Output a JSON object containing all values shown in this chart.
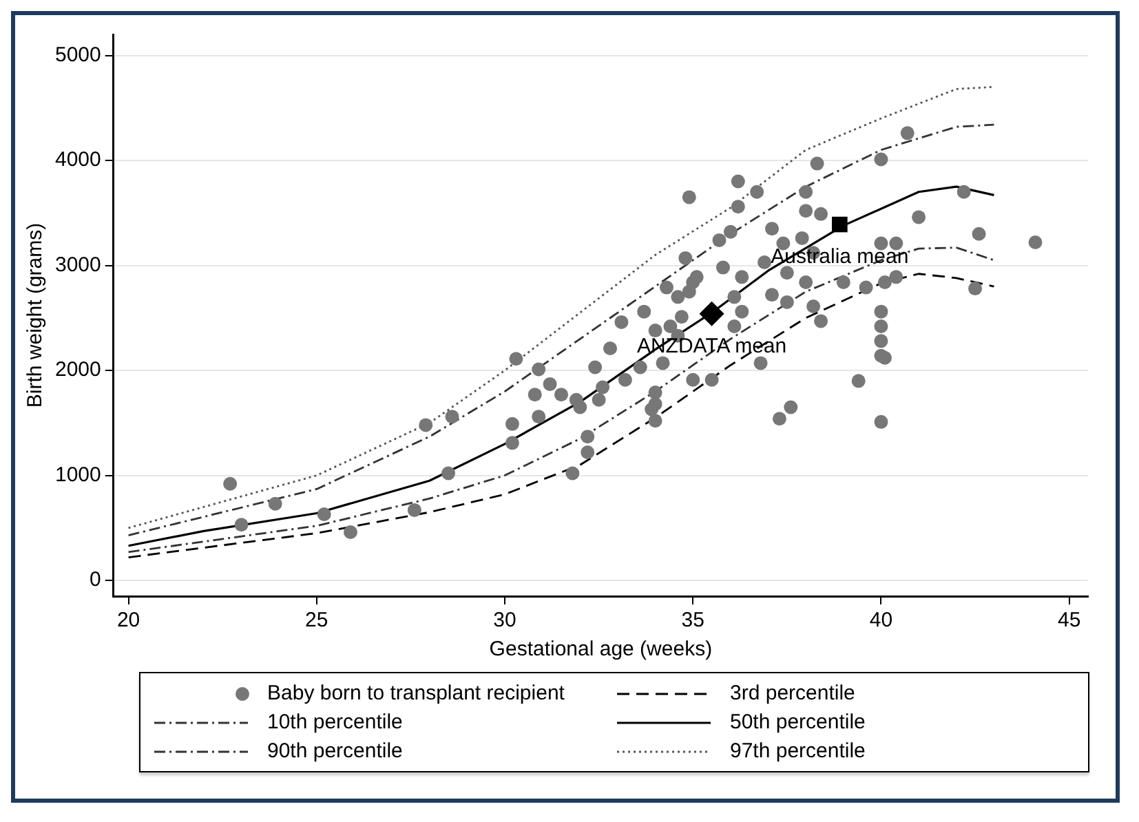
{
  "chart_data": {
    "type": "scatter",
    "xlabel": "Gestational age (weeks)",
    "ylabel": "Birth weight (grams)",
    "xlim": [
      19.6,
      45.5
    ],
    "xticks": [
      20,
      25,
      30,
      35,
      40,
      45
    ],
    "ylim": [
      -150,
      5200
    ],
    "yticks": [
      0,
      1000,
      2000,
      3000,
      4000,
      5000
    ],
    "grid": "y",
    "legend": "bottom",
    "annotations": [
      {
        "text": "Australia mean",
        "x": 38.9,
        "y": 3390
      },
      {
        "text": "ANZDATA mean",
        "x": 35.5,
        "y": 2540
      }
    ],
    "series": [
      {
        "name": "Baby born to transplant recipient",
        "type": "scatter",
        "marker": "circle",
        "color": "#777777",
        "x": [
          22.7,
          23.9,
          23.0,
          25.2,
          25.9,
          27.6,
          27.9,
          28.6,
          28.5,
          34.9,
          34.8,
          35.0,
          34.9,
          33.7,
          33.1,
          30.3,
          30.9,
          31.2,
          31.5,
          30.8,
          30.9,
          30.2,
          30.2,
          31.8,
          32.2,
          32.2,
          32.0,
          31.9,
          32.4,
          32.6,
          32.5,
          32.8,
          33.2,
          33.6,
          34.0,
          34.2,
          34.0,
          33.9,
          34.0,
          35.0,
          34.6,
          34.4,
          34.7,
          38.3,
          40.0,
          36.2,
          36.7,
          36.2,
          38.0,
          38.0,
          38.4,
          41.0,
          36.0,
          35.7,
          37.1,
          37.4,
          37.9,
          38.2,
          40.0,
          40.4,
          35.1,
          35.8,
          36.3,
          36.9,
          37.5,
          38.0,
          39.0,
          39.6,
          40.1,
          40.4,
          34.3,
          34.6,
          36.1,
          37.1,
          37.5,
          38.2,
          38.4,
          36.3,
          36.1,
          40.0,
          40.0,
          40.0,
          40.0,
          40.1,
          36.8,
          35.5,
          39.4,
          37.3,
          37.6,
          40.0,
          34.0,
          40.7,
          42.2,
          42.6,
          42.5,
          44.1
        ],
        "values": [
          920,
          730,
          530,
          630,
          460,
          670,
          1480,
          1560,
          1020,
          3650,
          3070,
          2840,
          2750,
          2560,
          2460,
          2110,
          2010,
          1870,
          1770,
          1770,
          1560,
          1490,
          1310,
          1020,
          1370,
          1220,
          1650,
          1720,
          2030,
          1840,
          1720,
          2210,
          1910,
          2030,
          2380,
          2070,
          1790,
          1630,
          1520,
          1910,
          2330,
          2420,
          2510,
          3970,
          4010,
          3800,
          3700,
          3560,
          3700,
          3520,
          3490,
          3460,
          3320,
          3240,
          3350,
          3210,
          3260,
          3120,
          3210,
          3210,
          2890,
          2980,
          2890,
          3030,
          2930,
          2840,
          2840,
          2790,
          2840,
          2890,
          2790,
          2700,
          2700,
          2720,
          2650,
          2610,
          2470,
          2560,
          2420,
          2560,
          2420,
          2280,
          2140,
          2120,
          2070,
          1910,
          1900,
          1540,
          1650,
          1510,
          1680,
          4260,
          3700,
          3300,
          2780,
          3220
        ]
      },
      {
        "name": "3rd percentile",
        "type": "line",
        "line_style": "dashed",
        "color": "#000000",
        "x": [
          20,
          25,
          28,
          30,
          32,
          34,
          36,
          38,
          40,
          41,
          42,
          43
        ],
        "values": [
          220,
          450,
          650,
          820,
          1100,
          1550,
          2050,
          2500,
          2830,
          2920,
          2880,
          2800
        ]
      },
      {
        "name": "10th percentile",
        "type": "line",
        "line_style": "dashdot",
        "color": "#333333",
        "x": [
          20,
          25,
          28,
          30,
          32,
          34,
          36,
          38,
          40,
          41,
          42,
          43
        ],
        "values": [
          270,
          520,
          780,
          1000,
          1350,
          1800,
          2300,
          2750,
          3050,
          3160,
          3170,
          3050
        ]
      },
      {
        "name": "50th percentile",
        "type": "line",
        "line_style": "solid",
        "color": "#000000",
        "x": [
          20,
          22,
          25,
          28,
          30,
          32,
          34,
          35.5,
          37,
          39,
          41,
          42,
          43
        ],
        "values": [
          330,
          470,
          640,
          950,
          1300,
          1700,
          2200,
          2550,
          2950,
          3380,
          3700,
          3750,
          3670
        ]
      },
      {
        "name": "90th percentile",
        "type": "line",
        "line_style": "dashdot",
        "color": "#333333",
        "x": [
          20,
          25,
          28,
          30,
          32,
          34,
          36,
          38,
          40,
          42,
          43
        ],
        "values": [
          430,
          870,
          1370,
          1800,
          2300,
          2800,
          3300,
          3750,
          4100,
          4320,
          4340
        ]
      },
      {
        "name": "97th percentile",
        "type": "line",
        "line_style": "dotted",
        "color": "#555555",
        "x": [
          20,
          25,
          28,
          30,
          32,
          34,
          36,
          38,
          40,
          42,
          43
        ],
        "values": [
          500,
          1000,
          1500,
          2000,
          2550,
          3100,
          3550,
          4100,
          4400,
          4680,
          4700
        ]
      },
      {
        "type": "scatter",
        "marker": "diamond",
        "color": "#000000",
        "x": [
          35.5
        ],
        "values": [
          2540
        ]
      },
      {
        "type": "scatter",
        "marker": "square",
        "color": "#000000",
        "x": [
          38.9
        ],
        "values": [
          3390
        ]
      }
    ]
  }
}
